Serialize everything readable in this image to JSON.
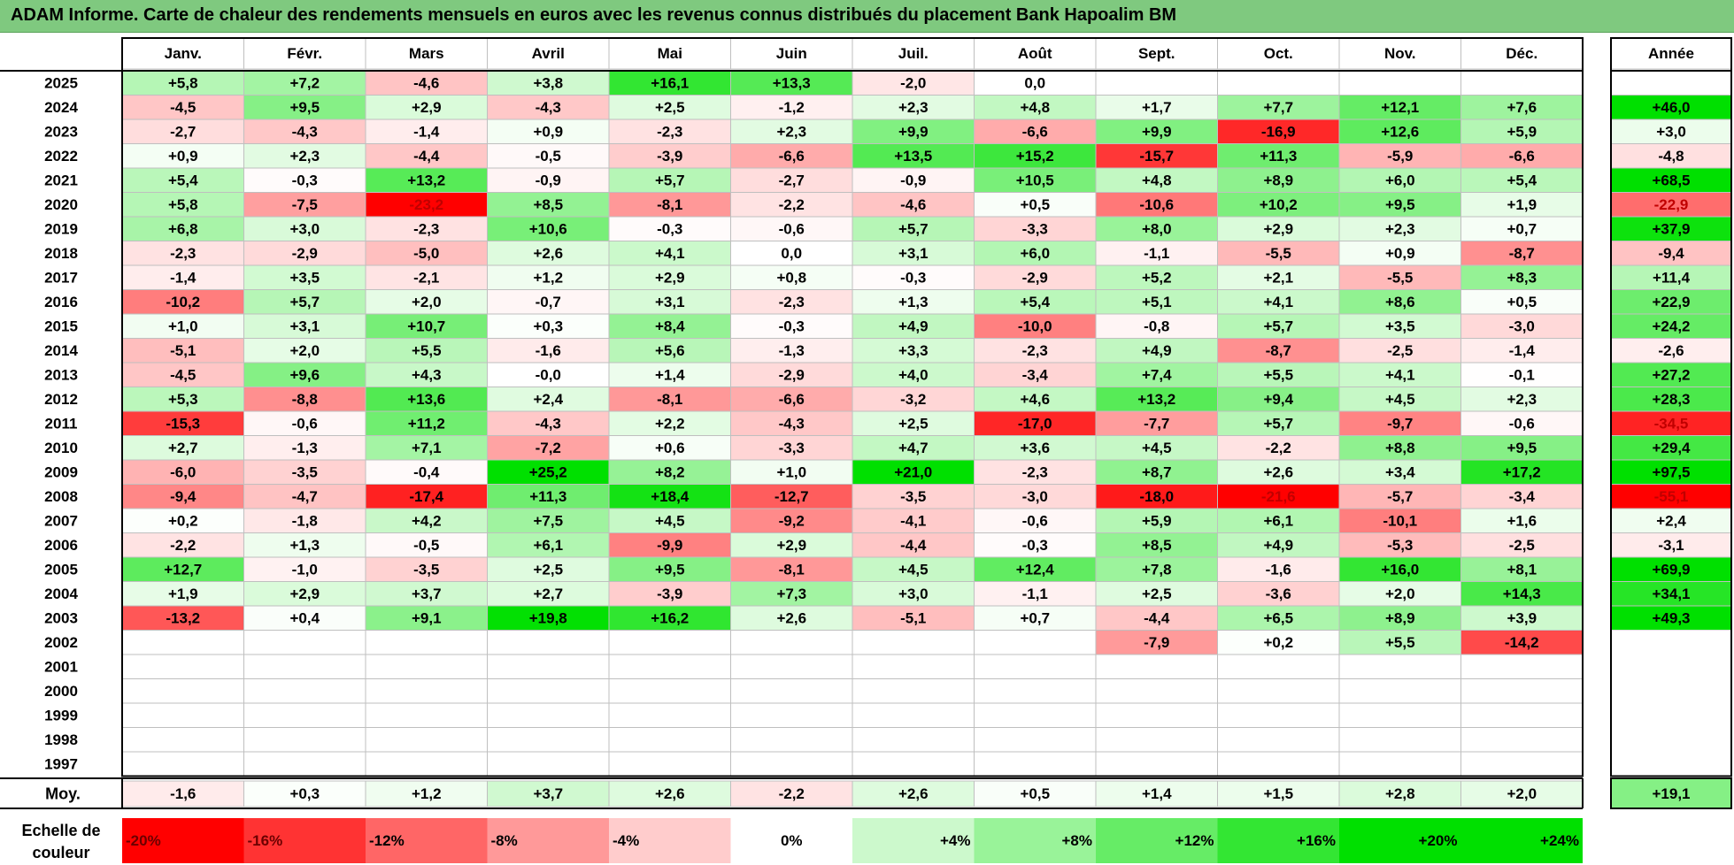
{
  "title": "ADAM Informe. Carte de chaleur des rendements mensuels en euros avec les revenus connus distribués du placement Bank Hapoalim BM",
  "colors": {
    "title_bg": "#7fc97f",
    "negative_max": "#ff0000",
    "neutral": "#ffffff",
    "positive_max": "#00e000",
    "grid": "#bfbfbf",
    "frame": "#000000"
  },
  "chart_data": {
    "type": "heatmap",
    "months": [
      "Janv.",
      "Févr.",
      "Mars",
      "Avril",
      "Mai",
      "Juin",
      "Juil.",
      "Août",
      "Sept.",
      "Oct.",
      "Nov.",
      "Déc."
    ],
    "year_header": "Année",
    "years": [
      "2025",
      "2024",
      "2023",
      "2022",
      "2021",
      "2020",
      "2019",
      "2018",
      "2017",
      "2016",
      "2015",
      "2014",
      "2013",
      "2012",
      "2011",
      "2010",
      "2009",
      "2008",
      "2007",
      "2006",
      "2005",
      "2004",
      "2003",
      "2002",
      "2001",
      "2000",
      "1999",
      "1998",
      "1997"
    ],
    "values": [
      [
        5.8,
        7.2,
        -4.6,
        3.8,
        16.1,
        13.3,
        -2.0,
        0.0,
        null,
        null,
        null,
        null
      ],
      [
        -4.5,
        9.5,
        2.9,
        -4.3,
        2.5,
        -1.2,
        2.3,
        4.8,
        1.7,
        7.7,
        12.1,
        7.6
      ],
      [
        -2.7,
        -4.3,
        -1.4,
        0.9,
        -2.3,
        2.3,
        9.9,
        -6.6,
        9.9,
        -16.9,
        12.6,
        5.9
      ],
      [
        0.9,
        2.3,
        -4.4,
        -0.5,
        -3.9,
        -6.6,
        13.5,
        15.2,
        -15.7,
        11.3,
        -5.9,
        -6.6
      ],
      [
        5.4,
        -0.3,
        13.2,
        -0.9,
        5.7,
        -2.7,
        -0.9,
        10.5,
        4.8,
        8.9,
        6.0,
        5.4
      ],
      [
        5.8,
        -7.5,
        -23.2,
        8.5,
        -8.1,
        -2.2,
        -4.6,
        0.5,
        -10.6,
        10.2,
        9.5,
        1.9
      ],
      [
        6.8,
        3.0,
        -2.3,
        10.6,
        -0.3,
        -0.6,
        5.7,
        -3.3,
        8.0,
        2.9,
        2.3,
        0.7
      ],
      [
        -2.3,
        -2.9,
        -5.0,
        2.6,
        4.1,
        0.0,
        3.1,
        6.0,
        -1.1,
        -5.5,
        0.9,
        -8.7
      ],
      [
        -1.4,
        3.5,
        -2.1,
        1.2,
        2.9,
        0.8,
        -0.3,
        -2.9,
        5.2,
        2.1,
        -5.5,
        8.3
      ],
      [
        -10.2,
        5.7,
        2.0,
        -0.7,
        3.1,
        -2.3,
        1.3,
        5.4,
        5.1,
        4.1,
        8.6,
        0.5
      ],
      [
        1.0,
        3.1,
        10.7,
        0.3,
        8.4,
        -0.3,
        4.9,
        -10.0,
        -0.8,
        5.7,
        3.5,
        -3.0
      ],
      [
        -5.1,
        2.0,
        5.5,
        -1.6,
        5.6,
        -1.3,
        3.3,
        -2.3,
        4.9,
        -8.7,
        -2.5,
        -1.4
      ],
      [
        -4.5,
        9.6,
        4.3,
        -0.0,
        1.4,
        -2.9,
        4.0,
        -3.4,
        7.4,
        5.5,
        4.1,
        -0.1
      ],
      [
        5.3,
        -8.8,
        13.6,
        2.4,
        -8.1,
        -6.6,
        -3.2,
        4.6,
        13.2,
        9.4,
        4.5,
        2.3
      ],
      [
        -15.3,
        -0.6,
        11.2,
        -4.3,
        2.2,
        -4.3,
        2.5,
        -17.0,
        -7.7,
        5.7,
        -9.7,
        -0.6
      ],
      [
        2.7,
        -1.3,
        7.1,
        -7.2,
        0.6,
        -3.3,
        4.7,
        3.6,
        4.5,
        -2.2,
        8.8,
        9.5
      ],
      [
        -6.0,
        -3.5,
        -0.4,
        25.2,
        8.2,
        1.0,
        21.0,
        -2.3,
        8.7,
        2.6,
        3.4,
        17.2
      ],
      [
        -9.4,
        -4.7,
        -17.4,
        11.3,
        18.4,
        -12.7,
        -3.5,
        -3.0,
        -18.0,
        -21.6,
        -5.7,
        -3.4
      ],
      [
        0.2,
        -1.8,
        4.2,
        7.5,
        4.5,
        -9.2,
        -4.1,
        -0.6,
        5.9,
        6.1,
        -10.1,
        1.6
      ],
      [
        -2.2,
        1.3,
        -0.5,
        6.1,
        -9.9,
        2.9,
        -4.4,
        -0.3,
        8.5,
        4.9,
        -5.3,
        -2.5
      ],
      [
        12.7,
        -1.0,
        -3.5,
        2.5,
        9.5,
        -8.1,
        4.5,
        12.4,
        7.8,
        -1.6,
        16.0,
        8.1
      ],
      [
        1.9,
        2.9,
        3.7,
        2.7,
        -3.9,
        7.3,
        3.0,
        -1.1,
        2.5,
        -3.6,
        2.0,
        14.3
      ],
      [
        -13.2,
        0.4,
        9.1,
        19.8,
        16.2,
        2.6,
        -5.1,
        0.7,
        -4.4,
        6.5,
        8.9,
        3.9
      ],
      [
        null,
        null,
        null,
        null,
        null,
        null,
        null,
        null,
        -7.9,
        0.2,
        5.5,
        -14.2
      ],
      [
        null,
        null,
        null,
        null,
        null,
        null,
        null,
        null,
        null,
        null,
        null,
        null
      ],
      [
        null,
        null,
        null,
        null,
        null,
        null,
        null,
        null,
        null,
        null,
        null,
        null
      ],
      [
        null,
        null,
        null,
        null,
        null,
        null,
        null,
        null,
        null,
        null,
        null,
        null
      ],
      [
        null,
        null,
        null,
        null,
        null,
        null,
        null,
        null,
        null,
        null,
        null,
        null
      ],
      [
        null,
        null,
        null,
        null,
        null,
        null,
        null,
        null,
        null,
        null,
        null,
        null
      ]
    ],
    "annual": [
      null,
      46.0,
      3.0,
      -4.8,
      68.5,
      -22.9,
      37.9,
      -9.4,
      11.4,
      22.9,
      24.2,
      -2.6,
      27.2,
      28.3,
      -34.5,
      29.4,
      97.5,
      -55.1,
      2.4,
      -3.1,
      69.9,
      34.1,
      49.3,
      null,
      null,
      null,
      null,
      null,
      null
    ],
    "average_label": "Moy.",
    "monthly_average": [
      -1.6,
      0.3,
      1.2,
      3.7,
      2.6,
      -2.2,
      2.6,
      0.5,
      1.4,
      1.5,
      2.8,
      2.0
    ],
    "annual_average": 19.1,
    "scale_label": [
      "Echelle de",
      "couleur"
    ],
    "scale": [
      "-20%",
      "-16%",
      "-12%",
      "-8%",
      "-4%",
      "0%",
      "+4%",
      "+8%",
      "+12%",
      "+16%",
      "+20%",
      "+24%"
    ],
    "scale_values": [
      -20,
      -16,
      -12,
      -8,
      -4,
      0,
      4,
      8,
      12,
      16,
      20,
      24
    ],
    "color_saturation_monthly": 20,
    "color_saturation_annual": 40
  }
}
